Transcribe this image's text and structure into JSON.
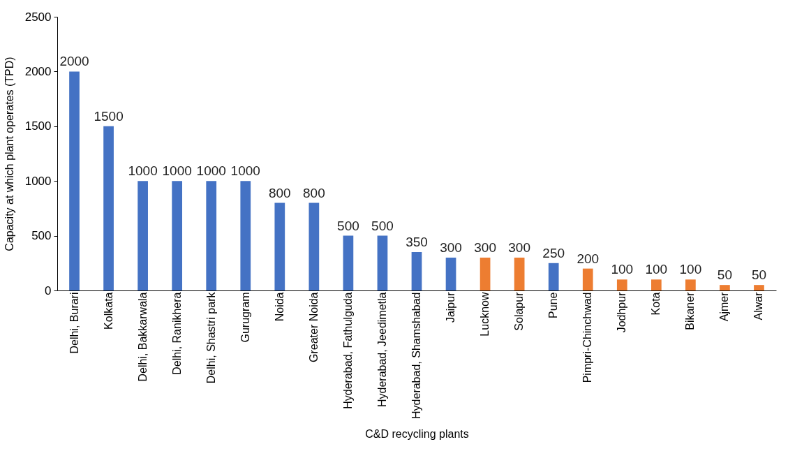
{
  "chart_data": {
    "type": "bar",
    "xlabel": "C&D recycling plants",
    "ylabel": "Capacity at which plant operates (TPD)",
    "categories": [
      "Delhi, Burari",
      "Kolkata",
      "Delhi, Bakkarwala",
      "Delhi, Ranikhera",
      "Delhi, Shastri park",
      "Gurugram",
      "Noida",
      "Greater Noida",
      "Hyderabad, Fathulguda",
      "Hyderabad, Jeedimetla",
      "Hyderabad, Shamshabad",
      "Jaipur",
      "Lucknow",
      "Solapur",
      "Pune",
      "Pimpri-Chinchwad",
      "Jodhpur",
      "Kota",
      "Bikaner",
      "Ajmer",
      "Alwar"
    ],
    "values": [
      2000,
      1500,
      1000,
      1000,
      1000,
      1000,
      800,
      800,
      500,
      500,
      350,
      300,
      300,
      300,
      250,
      200,
      100,
      100,
      100,
      50,
      50
    ],
    "colors": [
      "#4472c4",
      "#4472c4",
      "#4472c4",
      "#4472c4",
      "#4472c4",
      "#4472c4",
      "#4472c4",
      "#4472c4",
      "#4472c4",
      "#4472c4",
      "#4472c4",
      "#4472c4",
      "#ed7d31",
      "#ed7d31",
      "#4472c4",
      "#ed7d31",
      "#ed7d31",
      "#ed7d31",
      "#ed7d31",
      "#ed7d31",
      "#ed7d31"
    ],
    "ylim": [
      0,
      2500
    ],
    "yticks": [
      0,
      500,
      1000,
      1500,
      2000,
      2500
    ],
    "grid": false,
    "data_labels": true
  }
}
